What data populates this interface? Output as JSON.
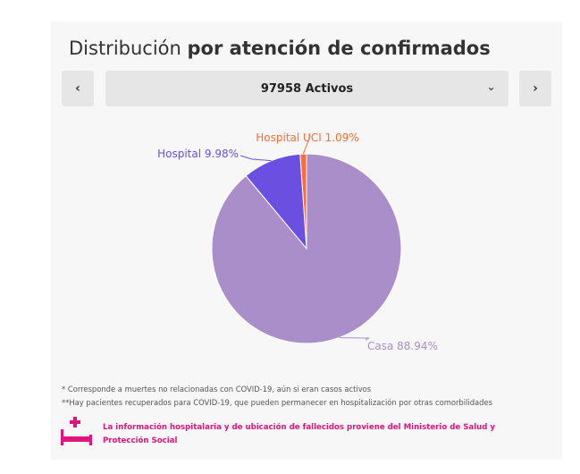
{
  "header": {
    "title_prefix": "Distribución",
    "title_bold": "por atención de confirmados"
  },
  "selector": {
    "prev_icon": "chevron-left-icon",
    "next_icon": "chevron-right-icon",
    "dropdown_icon": "chevron-down-icon",
    "prev_label": "‹",
    "next_label": "›",
    "chevron": "⌄",
    "selected": "97958 Activos"
  },
  "chart_data": {
    "type": "pie",
    "title": "",
    "slices": [
      {
        "label": "Hospital UCI",
        "value": 1.09,
        "display": "Hospital UCI 1.09%",
        "color": "#ff6b35"
      },
      {
        "label": "Hospital",
        "value": 9.98,
        "display": "Hospital 9.98%",
        "color": "#6b4fe0"
      },
      {
        "label": "Casa",
        "value": 88.94,
        "display": "Casa 88.94%",
        "color": "#a98ec9"
      }
    ]
  },
  "footnotes": {
    "note1": "* Corresponde a muertes no relacionadas con COVID-19, aún si eran casos activos",
    "note2": "**Hay pacientes recuperados para COVID-19, que pueden permanecer en hospitalización por otras comorbilidades",
    "source": "La información hospitalaria y de ubicación de fallecidos proviene del Ministerio de Salud y Protección Social",
    "source_icon": "hospital-bed-icon",
    "accent_color": "#e0157c"
  }
}
